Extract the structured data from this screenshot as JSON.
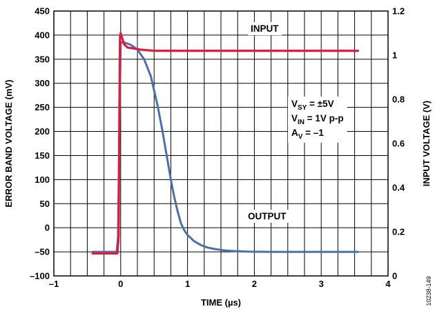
{
  "chart_data": {
    "type": "line",
    "xlabel": "TIME (µs)",
    "ylabel": "ERROR BAND VOLTAGE (mV)",
    "y2label": "INPUT VOLTAGE (V)",
    "xlim": [
      -1,
      4
    ],
    "ylim": [
      -100,
      450
    ],
    "y2lim": [
      0,
      1.2
    ],
    "x_ticks": [
      "–1",
      "0",
      "1",
      "2",
      "3",
      "4"
    ],
    "y_ticks": [
      "–100",
      "–50",
      "0",
      "50",
      "100",
      "150",
      "200",
      "250",
      "300",
      "350",
      "400",
      "450"
    ],
    "y2_ticks": [
      "0",
      "0.2",
      "0.4",
      "0.6",
      "0.8",
      "1",
      "1.2"
    ],
    "grid": true,
    "series": [
      {
        "name": "INPUT",
        "axis": "right",
        "color": "#e01b3c",
        "x": [
          -0.42,
          -0.05,
          -0.03,
          -0.02,
          -0.01,
          0.0,
          0.02,
          0.05,
          0.1,
          0.2,
          0.3,
          0.5,
          1.0,
          2.0,
          3.0,
          3.55
        ],
        "y": [
          0.102,
          0.102,
          0.18,
          0.75,
          1.08,
          1.1,
          1.08,
          1.05,
          1.035,
          1.03,
          1.025,
          1.02,
          1.02,
          1.02,
          1.02,
          1.02
        ]
      },
      {
        "name": "OUTPUT",
        "axis": "left",
        "color": "#4a6fae",
        "x": [
          -0.42,
          -0.06,
          -0.04,
          -0.02,
          0.0,
          0.05,
          0.15,
          0.25,
          0.35,
          0.45,
          0.55,
          0.62,
          0.7,
          0.75,
          0.8,
          0.85,
          0.9,
          0.95,
          1.0,
          1.1,
          1.2,
          1.3,
          1.4,
          1.55,
          1.7,
          1.9,
          2.2,
          2.6,
          3.0,
          3.55
        ],
        "y": [
          -50,
          -50,
          -20,
          200,
          385,
          385,
          380,
          370,
          350,
          315,
          255,
          205,
          140,
          100,
          65,
          35,
          10,
          -5,
          -15,
          -28,
          -36,
          -41,
          -44,
          -47,
          -48.5,
          -49.5,
          -50,
          -50,
          -50,
          -50
        ]
      }
    ],
    "annotations": [
      {
        "text": "INPUT"
      },
      {
        "text": "OUTPUT"
      },
      {
        "base": "V",
        "sub": "SY",
        "rest": " = ±5V"
      },
      {
        "base": "V",
        "sub": "IN",
        "rest": " = 1V p-p"
      },
      {
        "base": "A",
        "sub": "V",
        "rest": " = –1"
      }
    ]
  },
  "figure_id": "10238-149"
}
